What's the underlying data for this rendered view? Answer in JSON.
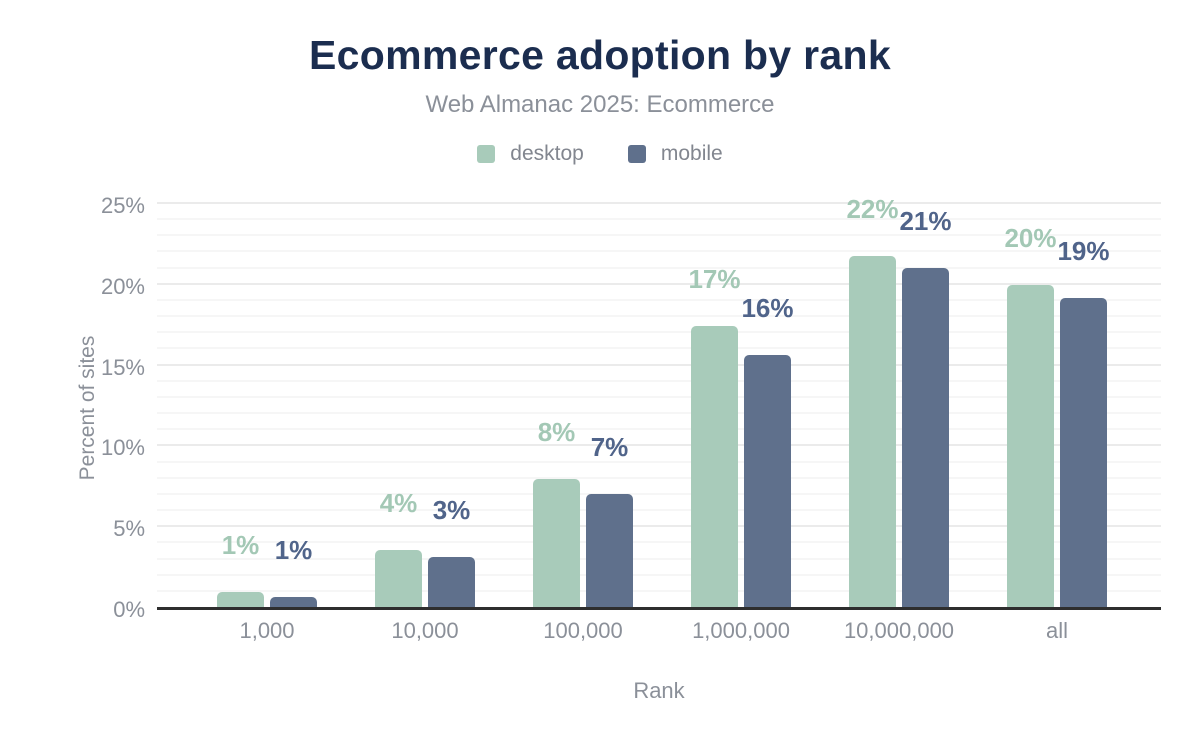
{
  "header": {
    "title": "Ecommerce adoption by rank",
    "subtitle": "Web Almanac 2025: Ecommerce"
  },
  "chart_data": {
    "type": "bar",
    "title": "Ecommerce adoption by rank",
    "subtitle": "Web Almanac 2025: Ecommerce",
    "xlabel": "Rank",
    "ylabel": "Percent of sites",
    "categories": [
      "1,000",
      "10,000",
      "100,000",
      "1,000,000",
      "10,000,000",
      "all"
    ],
    "series": [
      {
        "name": "desktop",
        "color": "#a8cbba",
        "label_color": "#a3c8b5",
        "values": [
          0.9,
          3.5,
          7.9,
          17.4,
          21.7,
          19.9
        ],
        "value_labels": [
          "1%",
          "4%",
          "8%",
          "17%",
          "22%",
          "20%"
        ]
      },
      {
        "name": "mobile",
        "color": "#5f708c",
        "label_color": "#50648a",
        "values": [
          0.6,
          3.1,
          7.0,
          15.6,
          21.0,
          19.1
        ],
        "value_labels": [
          "1%",
          "3%",
          "7%",
          "16%",
          "21%",
          "19%"
        ]
      }
    ],
    "ylim": [
      0,
      25
    ],
    "yticks": [
      0,
      5,
      10,
      15,
      20,
      25
    ],
    "ytick_labels": [
      "0%",
      "5%",
      "10%",
      "15%",
      "20%",
      "25%"
    ],
    "grid": {
      "on": true,
      "minor_step": 1,
      "major_step": 5,
      "minor_color": "#f6f6f6",
      "major_color": "#ebebeb"
    },
    "axis_line_color": "#2e2e2e",
    "legend_position": "top",
    "title_color": "#1b2d4f",
    "text_color": "#8b9099"
  }
}
